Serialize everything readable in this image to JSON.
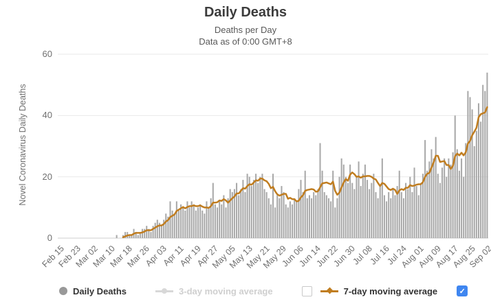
{
  "header": {
    "title": "Daily Deaths",
    "subtitle_line1": "Deaths per Day",
    "subtitle_line2": "Data as of 0:00 GMT+8"
  },
  "y_axis": {
    "title": "Novel Coronavirus Daily Deaths",
    "tick_labels": [
      "0",
      "20",
      "40",
      "60"
    ],
    "tick_values": [
      0,
      20,
      40,
      60
    ]
  },
  "x_axis": {
    "tick_labels": [
      "Feb 15",
      "Feb 23",
      "Mar 02",
      "Mar 10",
      "Mar 18",
      "Mar 26",
      "Apr 03",
      "Apr 11",
      "Apr 19",
      "Apr 27",
      "May 05",
      "May 13",
      "May 21",
      "May 29",
      "Jun 06",
      "Jun 14",
      "Jun 22",
      "Jun 30",
      "Jul 08",
      "Jul 16",
      "Jul 24",
      "Aug 01",
      "Aug 09",
      "Aug 17",
      "Aug 25",
      "Sep 02"
    ],
    "tick_interval_days": 8
  },
  "legend": {
    "daily_deaths_label": "Daily Deaths",
    "ma3_label": "3-day moving average",
    "ma7_label": "7-day moving average",
    "ma3_enabled": false,
    "checkbox_before_ma7_checked": false,
    "checkbox_after_ma7_checked": true,
    "check_glyph": "✓"
  },
  "colors": {
    "bar": "#a9a9a9",
    "ma_line": "#c07d20",
    "grid": "#e9e9e9",
    "zero_axis": "#cfcfcf",
    "disabled_legend": "#d8d8d8",
    "legend_dot": "#999999",
    "checkbox_checked_bg": "#3f86f0"
  },
  "chart_data": {
    "type": "bar",
    "title": "Daily Deaths",
    "xlabel": "",
    "ylabel": "Novel Coronavirus Daily Deaths",
    "ylim": [
      0,
      60
    ],
    "grid": "horizontal",
    "x_start_label": "Feb 15",
    "x_end_label": "Sep 02",
    "x_tick_every_days": 8,
    "series": [
      {
        "name": "Daily Deaths",
        "type": "bar",
        "values": [
          0,
          0,
          0,
          0,
          0,
          0,
          0,
          0,
          0,
          0,
          0,
          0,
          0,
          0,
          0,
          0,
          0,
          0,
          0,
          0,
          0,
          0,
          0,
          0,
          0,
          0,
          0,
          1,
          0,
          0,
          1,
          2,
          2,
          1,
          1,
          3,
          2,
          1,
          2,
          3,
          3,
          4,
          3,
          2,
          4,
          5,
          6,
          5,
          4,
          6,
          8,
          7,
          12,
          9,
          8,
          12,
          9,
          11,
          10,
          9,
          12,
          10,
          12,
          11,
          9,
          10,
          11,
          9,
          8,
          12,
          10,
          13,
          18,
          11,
          10,
          12,
          11,
          14,
          10,
          13,
          16,
          15,
          16,
          18,
          14,
          16,
          19,
          15,
          21,
          20,
          17,
          19,
          21,
          18,
          20,
          21,
          16,
          15,
          13,
          11,
          21,
          10,
          14,
          13,
          17,
          15,
          11,
          10,
          12,
          11,
          13,
          12,
          16,
          19,
          15,
          22,
          13,
          14,
          13,
          15,
          14,
          16,
          31,
          22,
          15,
          14,
          13,
          12,
          22,
          10,
          13,
          20,
          26,
          24,
          20,
          18,
          24,
          18,
          16,
          20,
          25,
          17,
          21,
          24,
          19,
          16,
          18,
          21,
          15,
          13,
          17,
          26,
          14,
          12,
          15,
          13,
          16,
          14,
          17,
          22,
          15,
          13,
          18,
          16,
          20,
          15,
          23,
          17,
          14,
          18,
          21,
          32,
          22,
          25,
          29,
          26,
          33,
          21,
          18,
          23,
          26,
          20,
          26,
          24,
          28,
          40,
          29,
          22,
          26,
          20,
          31,
          48,
          46,
          42,
          30,
          35,
          44,
          38,
          50,
          48,
          54
        ]
      },
      {
        "name": "7-day moving average",
        "type": "line",
        "derivation": "trailing 7-day mean of Daily Deaths, drawn from Mar 16 onward"
      },
      {
        "name": "3-day moving average",
        "type": "line",
        "visible": false
      }
    ],
    "legend_position": "bottom"
  }
}
